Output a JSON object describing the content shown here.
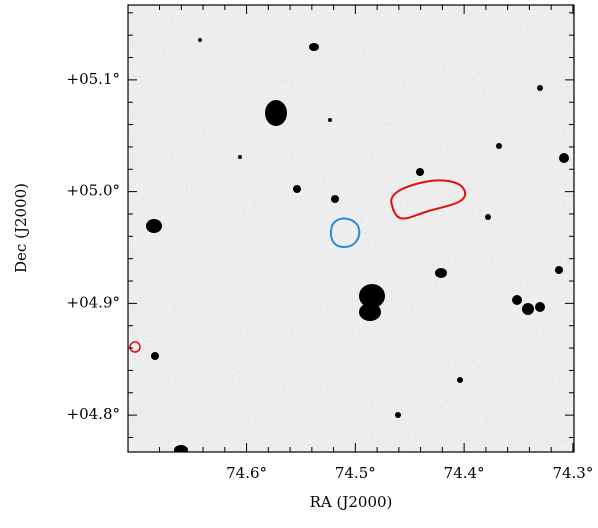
{
  "chart_data": {
    "type": "image",
    "x_label": "RA (J2000)",
    "y_label": "Dec (J2000)",
    "xlim": [
      74.709,
      74.299
    ],
    "ylim": [
      4.767,
      5.167
    ],
    "xticks": [
      {
        "value": 74.6,
        "label": "74.6°"
      },
      {
        "value": 74.5,
        "label": "74.5°"
      },
      {
        "value": 74.4,
        "label": "74.4°"
      },
      {
        "value": 74.3,
        "label": "74.3°"
      }
    ],
    "yticks": [
      {
        "value": 4.8,
        "label": "+04.8°"
      },
      {
        "value": 4.9,
        "label": "+04.9°"
      },
      {
        "value": 5.0,
        "label": "+05.0°"
      },
      {
        "value": 5.1,
        "label": "+05.1°"
      }
    ]
  }
}
